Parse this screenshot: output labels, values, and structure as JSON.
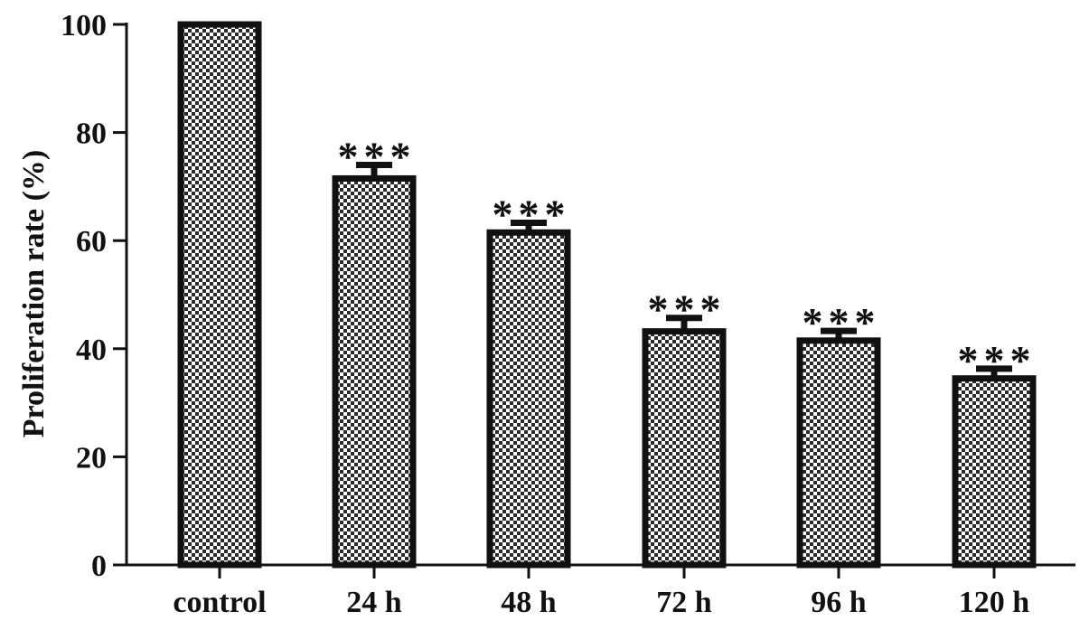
{
  "chart_data": {
    "type": "bar",
    "title": "",
    "xlabel": "",
    "ylabel": "Proliferation rate (%)",
    "categories": [
      "control",
      "24 h",
      "48 h",
      "72 h",
      "96 h",
      "120 h"
    ],
    "values": [
      100,
      71.5,
      61.5,
      43.2,
      41.5,
      34.5
    ],
    "errors": [
      0,
      2.5,
      1.8,
      2.5,
      1.8,
      1.8
    ],
    "annotations": [
      "",
      "***",
      "***",
      "***",
      "***",
      "***"
    ],
    "ylim": [
      0,
      100
    ],
    "yticks": [
      0,
      20,
      40,
      60,
      80,
      100
    ],
    "ytick_labels": [
      "0",
      "20",
      "40",
      "60",
      "80",
      "100"
    ],
    "grid": false,
    "legend": "none",
    "bar_fill": "dotted-pattern",
    "colors": {
      "bar_outline": "#111111",
      "bar_pattern_bg": "#ffffff",
      "bar_pattern_dot": "#2a2a2a",
      "axis": "#111111"
    }
  }
}
